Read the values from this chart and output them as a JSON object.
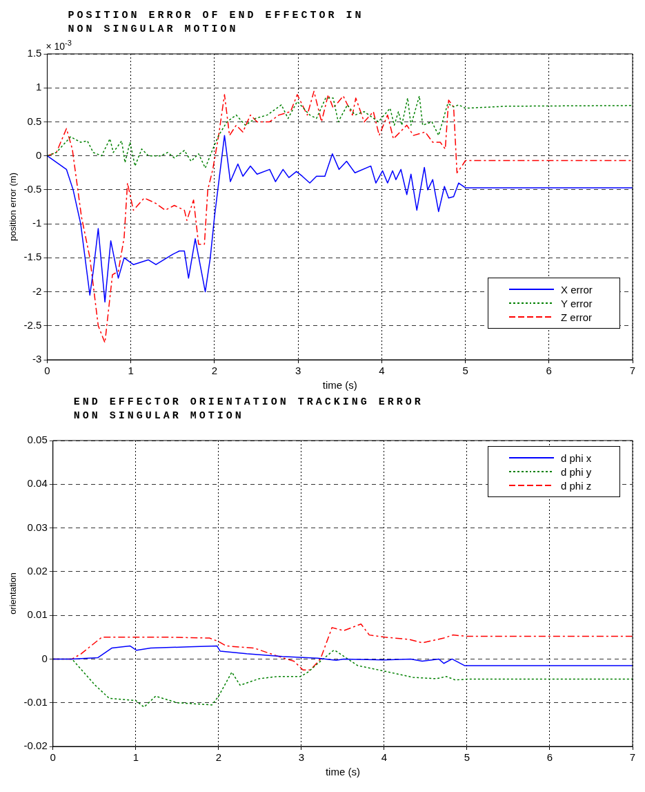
{
  "chart_data": [
    {
      "type": "line",
      "title": "POSITION ERROR OF END EFFECTOR IN\nNON SINGULAR MOTION",
      "xlabel": "time (s)",
      "ylabel": "position error (m)",
      "annotations": [
        "× 10$^{-3}$"
      ],
      "xlim": [
        0,
        7
      ],
      "xticks": [
        0,
        1,
        2,
        3,
        4,
        5,
        6,
        7
      ],
      "ylim": [
        -3,
        1.5
      ],
      "yticks": [
        -3,
        -2.5,
        -2,
        -1.5,
        -1,
        -0.5,
        0,
        0.5,
        1,
        1.5
      ],
      "grid": true,
      "legend": "bottom right",
      "series": [
        {
          "name": "X error",
          "color": "#0000ff",
          "line_style": "solid",
          "x": [
            0,
            0.23,
            0.31,
            0.4,
            0.51,
            0.55,
            0.61,
            0.69,
            0.76,
            0.85,
            0.92,
            1.03,
            1.21,
            1.3,
            1.5,
            1.58,
            1.64,
            1.69,
            1.77,
            1.89,
            1.95,
            2.0,
            2.12,
            2.19,
            2.28,
            2.34,
            2.43,
            2.51,
            2.66,
            2.73,
            2.82,
            2.89,
            2.98,
            3.05,
            3.14,
            3.22,
            3.32,
            3.41,
            3.49,
            3.58,
            3.68,
            3.87,
            3.93,
            4.01,
            4.07,
            4.13,
            4.17,
            4.23,
            4.3,
            4.35,
            4.42,
            4.51,
            4.55,
            4.61,
            4.68,
            4.75,
            4.8,
            4.86,
            4.92,
            5.0,
            7
          ],
          "values": [
            0,
            -0.2,
            -0.5,
            -1.0,
            -2.05,
            -1.7,
            -1.07,
            -2.15,
            -1.25,
            -1.8,
            -1.5,
            -1.6,
            -1.53,
            -1.6,
            -1.45,
            -1.4,
            -1.4,
            -1.8,
            -1.22,
            -2.0,
            -1.5,
            -0.9,
            0.3,
            -0.38,
            -0.12,
            -0.3,
            -0.15,
            -0.27,
            -0.2,
            -0.38,
            -0.2,
            -0.32,
            -0.23,
            -0.3,
            -0.4,
            -0.3,
            -0.3,
            0.03,
            -0.2,
            -0.08,
            -0.25,
            -0.15,
            -0.4,
            -0.22,
            -0.4,
            -0.22,
            -0.35,
            -0.2,
            -0.57,
            -0.27,
            -0.8,
            -0.17,
            -0.5,
            -0.35,
            -0.82,
            -0.45,
            -0.62,
            -0.6,
            -0.4,
            -0.47,
            -0.47
          ]
        },
        {
          "name": "Y error",
          "color": "#008000",
          "line_style": "dotted",
          "x": [
            0,
            0.11,
            0.28,
            0.4,
            0.48,
            0.55,
            0.65,
            0.75,
            0.79,
            0.89,
            0.93,
            0.99,
            1.05,
            1.13,
            1.21,
            1.36,
            1.44,
            1.52,
            1.64,
            1.72,
            1.81,
            1.89,
            1.98,
            2.05,
            2.15,
            2.26,
            2.37,
            2.49,
            2.63,
            2.8,
            2.88,
            2.99,
            3.14,
            3.22,
            3.33,
            3.42,
            3.48,
            3.59,
            3.68,
            3.79,
            3.96,
            4.1,
            4.15,
            4.2,
            4.24,
            4.31,
            4.35,
            4.45,
            4.49,
            4.6,
            4.68,
            4.79,
            4.86,
            4.92,
            5.0,
            5.5,
            7
          ],
          "values": [
            0,
            0.05,
            0.28,
            0.2,
            0.22,
            0.05,
            0.0,
            0.25,
            0.05,
            0.22,
            -0.1,
            0.2,
            -0.15,
            0.1,
            0.0,
            0.0,
            0.05,
            -0.03,
            0.08,
            -0.08,
            0.03,
            -0.18,
            0.1,
            0.3,
            0.5,
            0.6,
            0.45,
            0.55,
            0.6,
            0.75,
            0.55,
            0.8,
            0.6,
            0.55,
            0.85,
            0.85,
            0.5,
            0.75,
            0.6,
            0.65,
            0.5,
            0.7,
            0.45,
            0.65,
            0.45,
            0.85,
            0.45,
            0.88,
            0.45,
            0.5,
            0.3,
            0.77,
            0.72,
            0.75,
            0.7,
            0.73,
            0.74
          ]
        },
        {
          "name": "Z error",
          "color": "#ff0000",
          "line_style": "dashed",
          "x": [
            0,
            0.11,
            0.23,
            0.3,
            0.41,
            0.51,
            0.61,
            0.69,
            0.78,
            0.85,
            0.92,
            0.96,
            1.03,
            1.16,
            1.3,
            1.41,
            1.52,
            1.64,
            1.67,
            1.75,
            1.81,
            1.88,
            1.92,
            1.98,
            2.05,
            2.12,
            2.18,
            2.26,
            2.34,
            2.43,
            2.51,
            2.66,
            2.77,
            2.91,
            2.99,
            3.11,
            3.19,
            3.28,
            3.36,
            3.42,
            3.54,
            3.65,
            3.69,
            3.79,
            3.9,
            3.97,
            4.07,
            4.14,
            4.3,
            4.38,
            4.52,
            4.61,
            4.7,
            4.76,
            4.8,
            4.86,
            4.9,
            4.96,
            5.0,
            7
          ],
          "values": [
            0,
            0.05,
            0.4,
            0.1,
            -0.9,
            -1.5,
            -2.5,
            -2.75,
            -1.75,
            -1.7,
            -1.2,
            -0.4,
            -0.8,
            -0.62,
            -0.7,
            -0.8,
            -0.73,
            -0.8,
            -0.95,
            -0.65,
            -1.3,
            -1.3,
            -0.5,
            -0.2,
            0.3,
            0.9,
            0.3,
            0.45,
            0.35,
            0.6,
            0.5,
            0.5,
            0.6,
            0.65,
            0.9,
            0.6,
            0.95,
            0.5,
            0.9,
            0.7,
            0.88,
            0.6,
            0.85,
            0.5,
            0.65,
            0.3,
            0.6,
            0.25,
            0.45,
            0.3,
            0.35,
            0.2,
            0.2,
            0.1,
            0.82,
            0.72,
            -0.25,
            -0.15,
            -0.07,
            -0.07
          ]
        }
      ]
    },
    {
      "type": "line",
      "title": "END EFFECTOR ORIENTATION TRACKING ERROR\nNON SINGULAR MOTION",
      "xlabel": "time (s)",
      "ylabel": "orientation",
      "xlim": [
        0,
        7
      ],
      "xticks": [
        0,
        1,
        2,
        3,
        4,
        5,
        6,
        7
      ],
      "ylim": [
        -0.02,
        0.05
      ],
      "yticks": [
        -0.02,
        -0.01,
        0,
        0.01,
        0.02,
        0.03,
        0.04,
        0.05
      ],
      "grid": true,
      "legend": "top right",
      "series": [
        {
          "name": "d phi x",
          "color": "#0000ff",
          "line_style": "solid",
          "x": [
            0,
            0.23,
            0.54,
            0.71,
            0.93,
            1.01,
            1.18,
            1.64,
            1.98,
            2.02,
            2.34,
            2.77,
            3.2,
            3.42,
            3.51,
            4.0,
            4.32,
            4.46,
            4.66,
            4.72,
            4.82,
            4.97,
            7
          ],
          "values": [
            0,
            0,
            0.0003,
            0.0025,
            0.003,
            0.002,
            0.0025,
            0.0028,
            0.003,
            0.0018,
            0.0012,
            0.0006,
            0.0002,
            -0.0003,
            0,
            -0.0002,
            0,
            -0.0005,
            0,
            -0.001,
            0,
            -0.0015,
            -0.0015
          ]
        },
        {
          "name": "d phi y",
          "color": "#008000",
          "line_style": "dotted",
          "x": [
            0,
            0.23,
            0.51,
            0.68,
            1.0,
            1.1,
            1.24,
            1.5,
            1.92,
            2.0,
            2.16,
            2.26,
            2.49,
            2.71,
            2.99,
            3.08,
            3.23,
            3.39,
            3.42,
            3.68,
            4.01,
            4.35,
            4.63,
            4.75,
            4.86,
            5.0,
            7
          ],
          "values": [
            0,
            0,
            -0.006,
            -0.009,
            -0.0095,
            -0.011,
            -0.0085,
            -0.01,
            -0.0105,
            -0.0085,
            -0.003,
            -0.006,
            -0.0045,
            -0.004,
            -0.004,
            -0.003,
            -0.0005,
            0.002,
            0.0018,
            -0.0015,
            -0.0028,
            -0.0042,
            -0.0045,
            -0.004,
            -0.0048,
            -0.0046,
            -0.0046
          ]
        },
        {
          "name": "d phi z",
          "color": "#ff0000",
          "line_style": "dashed",
          "x": [
            0,
            0.23,
            0.34,
            0.59,
            0.93,
            1.36,
            1.89,
            2.0,
            2.09,
            2.43,
            2.63,
            2.77,
            2.91,
            3.02,
            3.11,
            3.23,
            3.37,
            3.51,
            3.72,
            3.82,
            4.01,
            4.3,
            4.46,
            4.72,
            4.83,
            5.0,
            7
          ],
          "values": [
            0,
            0,
            0.0012,
            0.005,
            0.005,
            0.005,
            0.0048,
            0.004,
            0.003,
            0.0025,
            0.0012,
            0.0003,
            -0.0005,
            -0.0025,
            -0.0025,
            0,
            0.0072,
            0.0065,
            0.008,
            0.0055,
            0.005,
            0.0045,
            0.0037,
            0.0048,
            0.0055,
            0.0052,
            0.0052
          ]
        }
      ]
    }
  ]
}
